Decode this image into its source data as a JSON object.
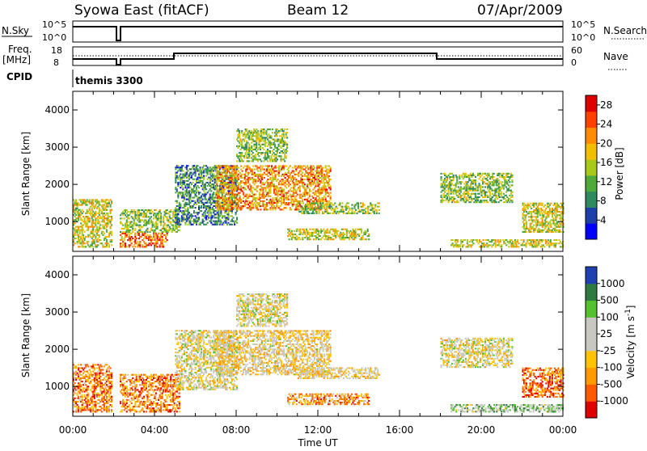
{
  "header": {
    "station": "Syowa East (fitACF)",
    "beam": "Beam 12",
    "date": "07/Apr/2009"
  },
  "top_panels": {
    "nsky_label": "N.Sky",
    "nsky_ticks": [
      "10^5",
      "10^0"
    ],
    "nsearch_label": "N.Search",
    "nsearch_ticks": [
      "10^5",
      "10^0"
    ],
    "freq_label_line1": "Freq.",
    "freq_label_line2": "[MHz]",
    "freq_ticks": [
      "18",
      "8"
    ],
    "nave_label": "Nave",
    "nave_ticks": [
      "60",
      "0"
    ],
    "cpid_label": "CPID",
    "cpid_value": "themis 3300"
  },
  "colors": {
    "power_scale": [
      "#0000ff",
      "#1f3fa8",
      "#2f8a5e",
      "#4faa3a",
      "#a8c81a",
      "#f0c000",
      "#ff8c00",
      "#ff4000",
      "#e00000"
    ],
    "velocity_scale": [
      "#e00000",
      "#ff5a00",
      "#ff9a00",
      "#ffc400",
      "#c8c8c0",
      "#c8c8c0",
      "#55c030",
      "#2f7a40",
      "#2040b0"
    ]
  },
  "chart_data": [
    {
      "type": "heatmap",
      "name": "power",
      "ylabel": "Slant Range [km]",
      "y_ticks": [
        "1000",
        "2000",
        "3000",
        "4000"
      ],
      "ylim": [
        200,
        4500
      ],
      "x_ticks": [
        "00:00",
        "04:00",
        "08:00",
        "12:00",
        "16:00",
        "20:00",
        "00:00"
      ],
      "xlim_hours": [
        0,
        24
      ],
      "colorbar_label": "Power [dB]",
      "colorbar_ticks": [
        "4",
        "8",
        "12",
        "16",
        "20",
        "24",
        "28"
      ],
      "colorbar_range": [
        0,
        30
      ],
      "regions": [
        {
          "t": [
            0,
            1.9
          ],
          "r": [
            300,
            1600
          ],
          "level": 0.55
        },
        {
          "t": [
            2.3,
            4.6
          ],
          "r": [
            300,
            700
          ],
          "level": 0.75
        },
        {
          "t": [
            2.3,
            5.2
          ],
          "r": [
            700,
            1300
          ],
          "level": 0.45
        },
        {
          "t": [
            5.0,
            8.0
          ],
          "r": [
            900,
            2500
          ],
          "level": 0.3
        },
        {
          "t": [
            7.0,
            12.6
          ],
          "r": [
            1300,
            2500
          ],
          "level": 0.7
        },
        {
          "t": [
            8.0,
            10.5
          ],
          "r": [
            2600,
            3500
          ],
          "level": 0.45
        },
        {
          "t": [
            10.5,
            14.5
          ],
          "r": [
            500,
            800
          ],
          "level": 0.55
        },
        {
          "t": [
            11.0,
            15.0
          ],
          "r": [
            1200,
            1500
          ],
          "level": 0.45
        },
        {
          "t": [
            18.0,
            21.5
          ],
          "r": [
            1500,
            2300
          ],
          "level": 0.45
        },
        {
          "t": [
            18.5,
            24.0
          ],
          "r": [
            300,
            500
          ],
          "level": 0.55
        },
        {
          "t": [
            22.0,
            24.0
          ],
          "r": [
            700,
            1500
          ],
          "level": 0.55
        }
      ]
    },
    {
      "type": "heatmap",
      "name": "velocity",
      "ylabel": "Slant Range [km]",
      "y_ticks": [
        "1000",
        "2000",
        "3000",
        "4000"
      ],
      "ylim": [
        200,
        4500
      ],
      "x_ticks": [
        "00:00",
        "04:00",
        "08:00",
        "12:00",
        "16:00",
        "20:00",
        "00:00"
      ],
      "xlim_hours": [
        0,
        24
      ],
      "xlabel": "Time UT",
      "colorbar_label": "Velocity [m s",
      "colorbar_label_sup": "-1",
      "colorbar_label_end": "]",
      "colorbar_ticks": [
        "1000",
        "500",
        "100",
        "25",
        "-25",
        "-100",
        "-500",
        "-1000"
      ],
      "regions": [
        {
          "t": [
            0,
            1.9
          ],
          "r": [
            300,
            1600
          ],
          "level": 0.25
        },
        {
          "t": [
            2.3,
            5.2
          ],
          "r": [
            300,
            1300
          ],
          "level": 0.25
        },
        {
          "t": [
            5.0,
            8.0
          ],
          "r": [
            900,
            2500
          ],
          "level": 0.5
        },
        {
          "t": [
            7.0,
            12.6
          ],
          "r": [
            1300,
            2500
          ],
          "level": 0.45
        },
        {
          "t": [
            8.0,
            10.5
          ],
          "r": [
            2600,
            3500
          ],
          "level": 0.5
        },
        {
          "t": [
            10.5,
            14.5
          ],
          "r": [
            500,
            800
          ],
          "level": 0.3
        },
        {
          "t": [
            11.0,
            15.0
          ],
          "r": [
            1200,
            1500
          ],
          "level": 0.45
        },
        {
          "t": [
            18.0,
            21.5
          ],
          "r": [
            1500,
            2300
          ],
          "level": 0.5
        },
        {
          "t": [
            18.5,
            24.0
          ],
          "r": [
            300,
            500
          ],
          "level": 0.65
        },
        {
          "t": [
            22.0,
            24.0
          ],
          "r": [
            700,
            1500
          ],
          "level": 0.2
        }
      ]
    }
  ]
}
